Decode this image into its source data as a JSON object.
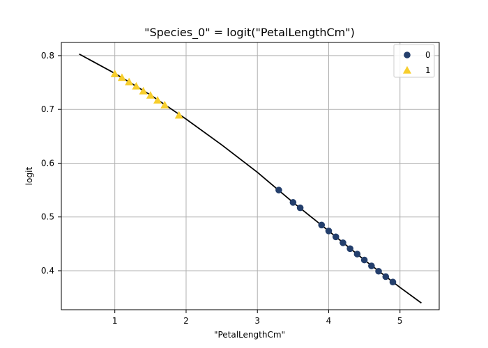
{
  "chart_data": {
    "type": "scatter",
    "title": "\"Species_0\" = logit(\"PetalLengthCm\")",
    "xlabel": "\"PetalLengthCm\"",
    "ylabel": "logit",
    "xlim": [
      0.25,
      5.55
    ],
    "ylim": [
      0.3275,
      0.8245
    ],
    "x_ticks": [
      1,
      2,
      3,
      4,
      5
    ],
    "y_ticks": [
      0.4,
      0.5,
      0.6,
      0.7,
      0.8
    ],
    "x_tick_labels": [
      "1",
      "2",
      "3",
      "4",
      "5"
    ],
    "y_tick_labels": [
      "0.4",
      "0.5",
      "0.6",
      "0.7",
      "0.8"
    ],
    "grid": true,
    "legend": "top-right",
    "series": [
      {
        "name": "0",
        "marker": "circle",
        "color": "#243f6c",
        "points": [
          [
            3.3,
            0.55
          ],
          [
            3.5,
            0.527
          ],
          [
            3.6,
            0.517
          ],
          [
            3.9,
            0.485
          ],
          [
            4.0,
            0.474
          ],
          [
            4.1,
            0.463
          ],
          [
            4.2,
            0.452
          ],
          [
            4.3,
            0.441
          ],
          [
            4.4,
            0.431
          ],
          [
            4.5,
            0.42
          ],
          [
            4.6,
            0.409
          ],
          [
            4.7,
            0.399
          ],
          [
            4.8,
            0.389
          ],
          [
            4.9,
            0.379
          ]
        ]
      },
      {
        "name": "1",
        "marker": "triangle",
        "color": "#f7ce2d",
        "points": [
          [
            1.0,
            0.766
          ],
          [
            1.1,
            0.759
          ],
          [
            1.2,
            0.751
          ],
          [
            1.3,
            0.743
          ],
          [
            1.4,
            0.734
          ],
          [
            1.5,
            0.726
          ],
          [
            1.6,
            0.717
          ],
          [
            1.7,
            0.708
          ],
          [
            1.9,
            0.689
          ]
        ]
      }
    ],
    "fit_line": {
      "color": "#000000",
      "points": [
        [
          0.5,
          0.803
        ],
        [
          1.0,
          0.767
        ],
        [
          1.5,
          0.727
        ],
        [
          2.0,
          0.682
        ],
        [
          2.5,
          0.634
        ],
        [
          3.0,
          0.583
        ],
        [
          3.5,
          0.527
        ],
        [
          4.0,
          0.474
        ],
        [
          4.5,
          0.42
        ],
        [
          5.0,
          0.369
        ],
        [
          5.3,
          0.34
        ]
      ]
    }
  }
}
